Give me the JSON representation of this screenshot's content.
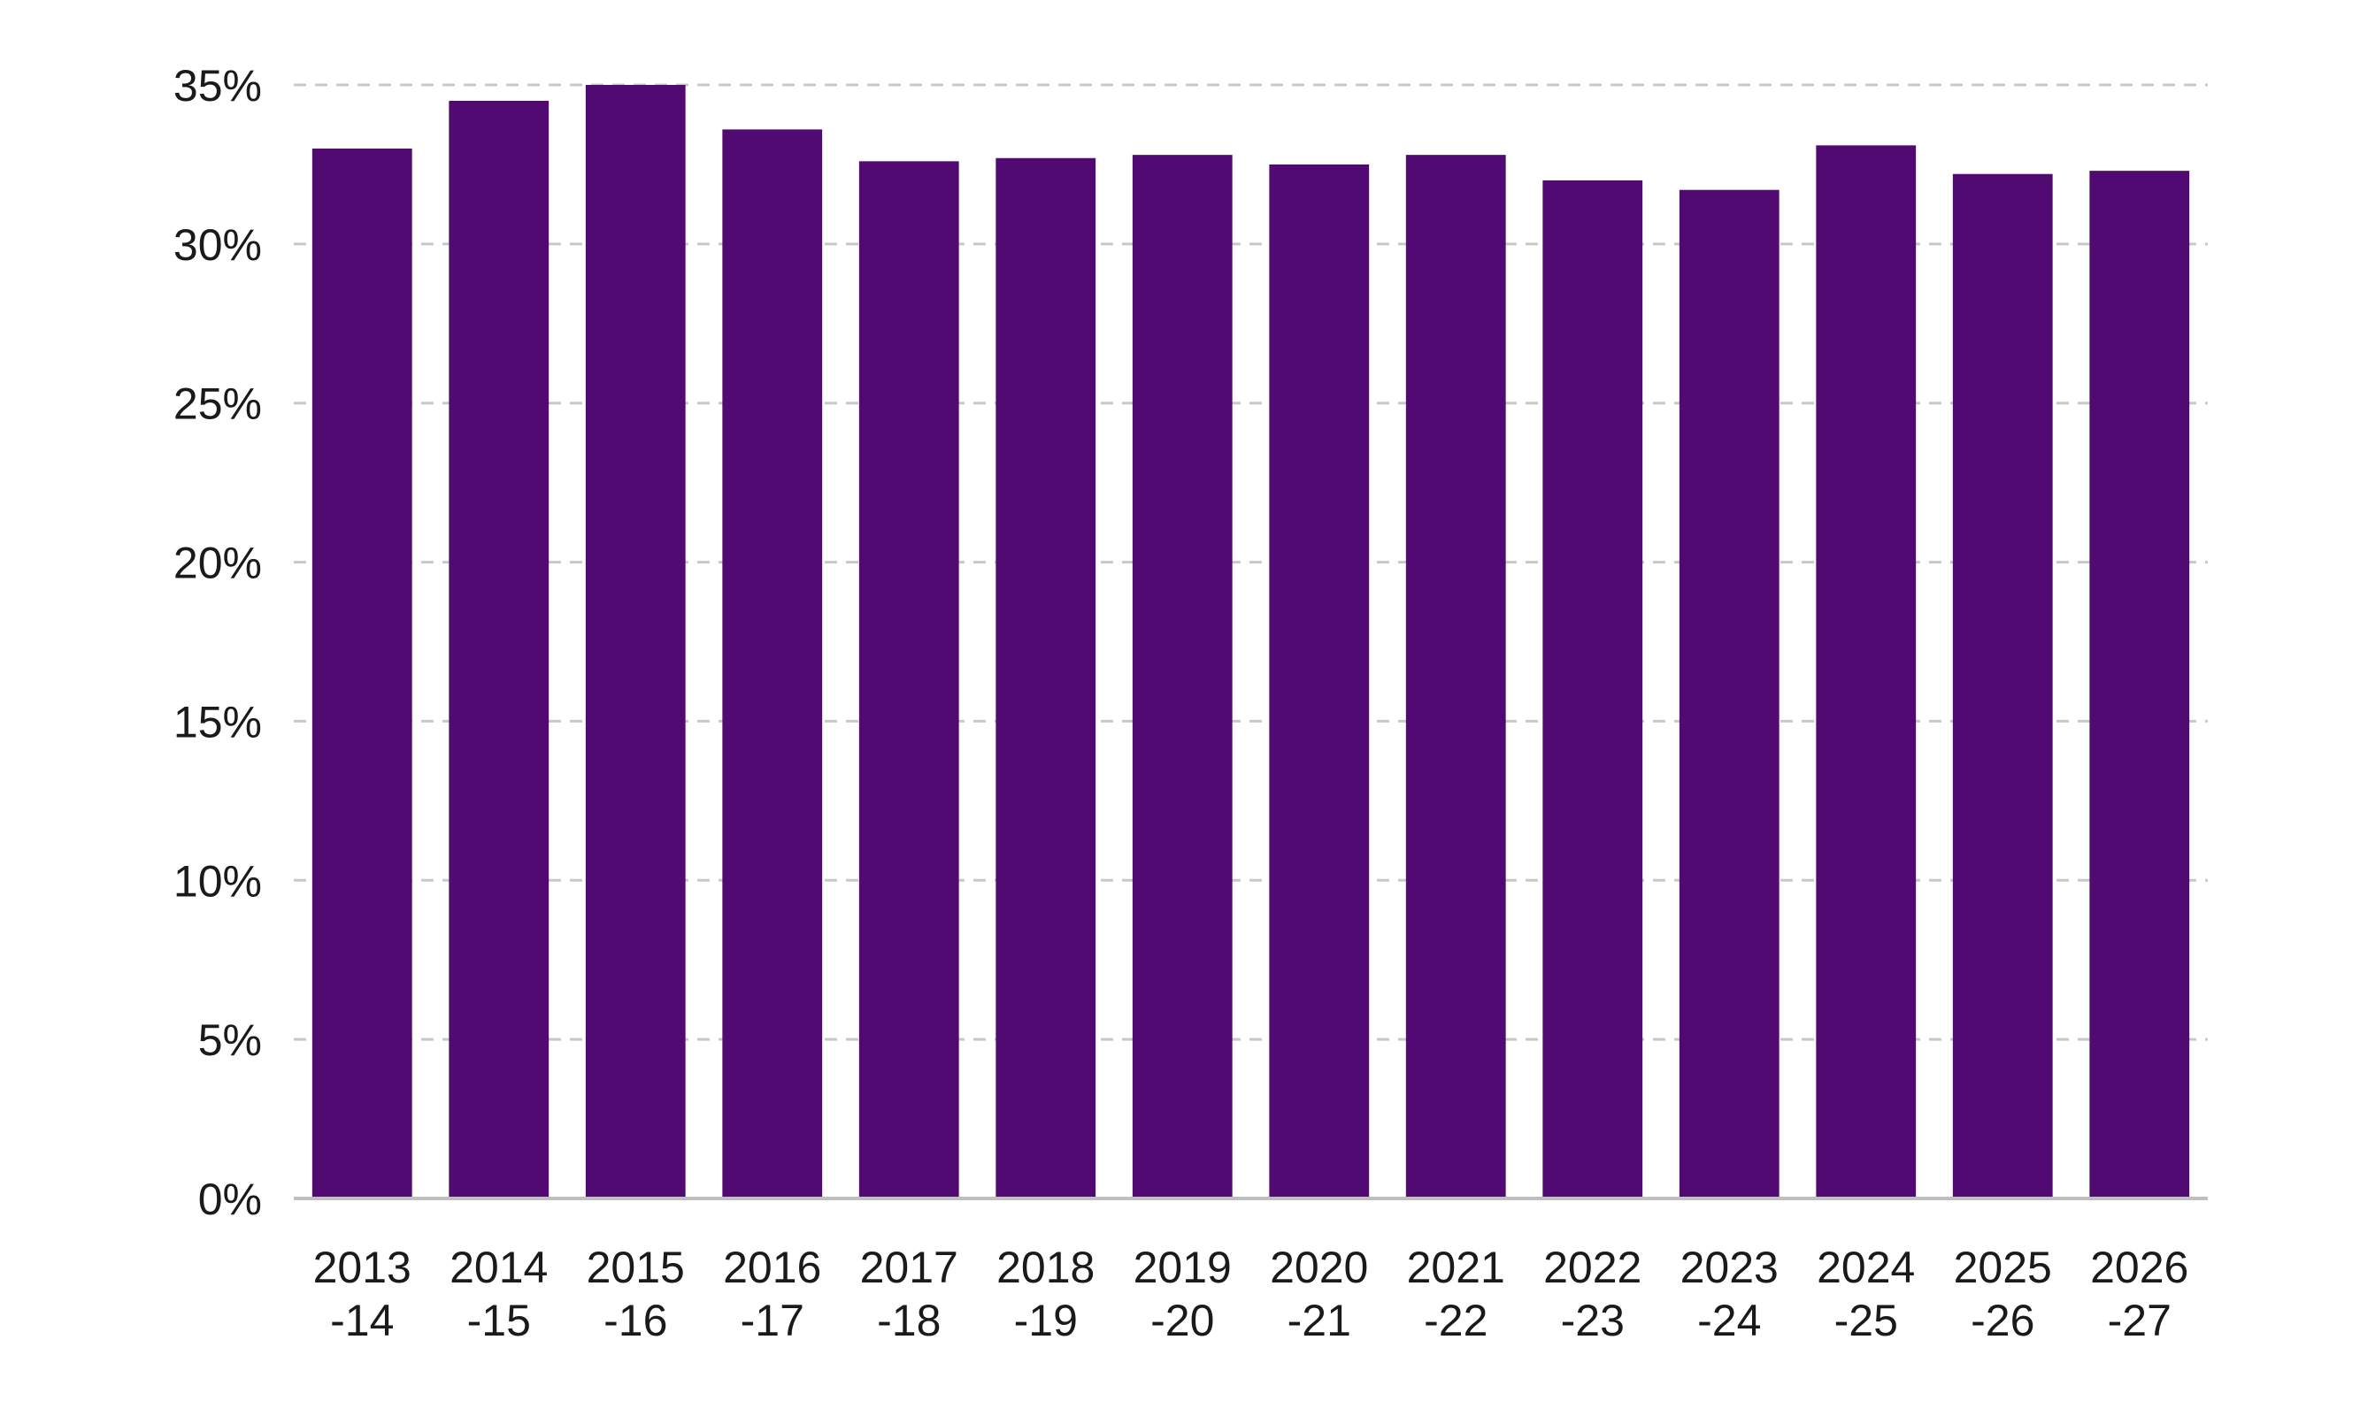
{
  "chart_data": {
    "type": "bar",
    "title": "",
    "xlabel": "",
    "ylabel": "",
    "categories": [
      [
        "2013",
        "-14"
      ],
      [
        "2014",
        "-15"
      ],
      [
        "2015",
        "-16"
      ],
      [
        "2016",
        "-17"
      ],
      [
        "2017",
        "-18"
      ],
      [
        "2018",
        "-19"
      ],
      [
        "2019",
        "-20"
      ],
      [
        "2020",
        "-21"
      ],
      [
        "2021",
        "-22"
      ],
      [
        "2022",
        "-23"
      ],
      [
        "2023",
        "-24"
      ],
      [
        "2024",
        "-25"
      ],
      [
        "2025",
        "-26"
      ],
      [
        "2026",
        "-27"
      ]
    ],
    "values": [
      33.0,
      34.5,
      35.0,
      33.6,
      32.6,
      32.7,
      32.8,
      32.5,
      32.8,
      32.0,
      31.7,
      33.1,
      32.2,
      32.3
    ],
    "ylim": [
      0,
      35
    ],
    "yticks": [
      0,
      5,
      10,
      15,
      20,
      25,
      30,
      35
    ],
    "ytick_labels": [
      "0%",
      "5%",
      "10%",
      "15%",
      "20%",
      "25%",
      "30%",
      "35%"
    ],
    "grid": true,
    "legend": "none",
    "colors": {
      "bar": "#500a72",
      "grid": "#c8c8c8",
      "axis": "#bfbfbf",
      "text": "#1a1a1a"
    }
  }
}
